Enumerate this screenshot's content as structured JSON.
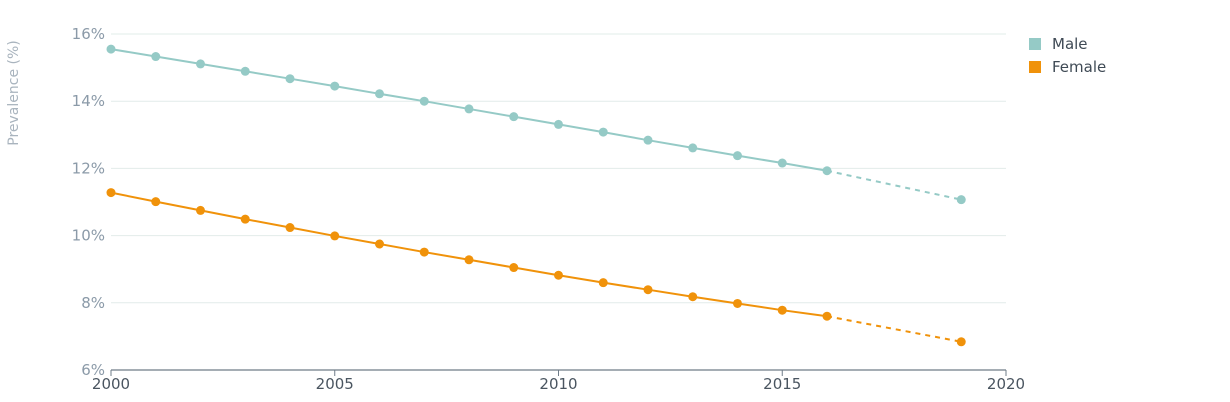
{
  "chart_data": {
    "type": "line",
    "title": "",
    "xlabel": "",
    "ylabel": "Prevalence (%)",
    "xlim": [
      2000,
      2020
    ],
    "ylim": [
      6,
      16
    ],
    "x_ticks": [
      "2000",
      "2005",
      "2010",
      "2015",
      "2020"
    ],
    "y_ticks": [
      "6%",
      "8%",
      "10%",
      "12%",
      "14%",
      "16%"
    ],
    "grid": "horizontal",
    "legend_position": "top-right",
    "series": [
      {
        "name": "Male",
        "color": "#95cac6",
        "x": [
          2000,
          2001,
          2002,
          2003,
          2004,
          2005,
          2006,
          2007,
          2008,
          2009,
          2010,
          2011,
          2012,
          2013,
          2014,
          2015,
          2016,
          2019
        ],
        "values": [
          15.55,
          15.33,
          15.11,
          14.89,
          14.67,
          14.45,
          14.22,
          14.0,
          13.77,
          13.54,
          13.31,
          13.08,
          12.84,
          12.61,
          12.38,
          12.16,
          11.93,
          11.07
        ],
        "dashed_from": 2016
      },
      {
        "name": "Female",
        "color": "#f0920a",
        "x": [
          2000,
          2001,
          2002,
          2003,
          2004,
          2005,
          2006,
          2007,
          2008,
          2009,
          2010,
          2011,
          2012,
          2013,
          2014,
          2015,
          2016,
          2019
        ],
        "values": [
          11.28,
          11.01,
          10.75,
          10.49,
          10.24,
          9.99,
          9.75,
          9.51,
          9.28,
          9.05,
          8.82,
          8.6,
          8.39,
          8.18,
          7.98,
          7.78,
          7.6,
          6.84
        ],
        "dashed_from": 2016
      }
    ]
  }
}
